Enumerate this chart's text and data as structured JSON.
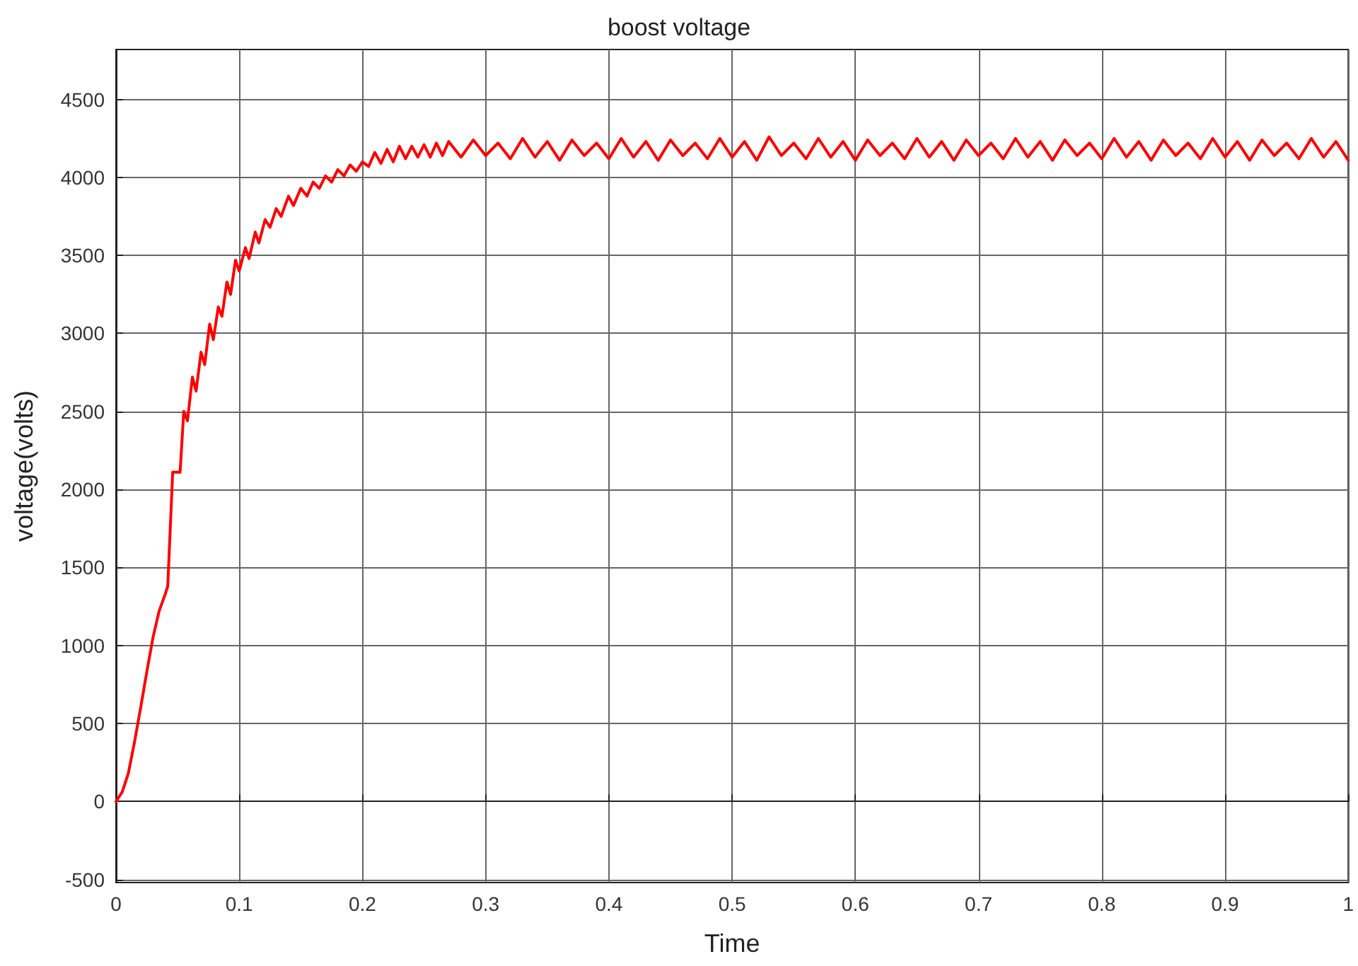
{
  "chart_data": {
    "type": "line",
    "title": "boost voltage",
    "xlabel": "Time",
    "ylabel": "voltage(volts)",
    "xlim": [
      0,
      1
    ],
    "xticks": [
      0,
      0.1,
      0.2,
      0.3,
      0.4,
      0.5,
      0.6,
      0.7,
      0.8,
      0.9,
      1
    ],
    "ylim": [
      -520,
      4820
    ],
    "yticks": [
      -500,
      0,
      500,
      1000,
      1500,
      2000,
      2500,
      3000,
      3500,
      4000,
      4500
    ],
    "grid": true,
    "marker": "none",
    "line_style": "solid",
    "series": [
      {
        "color": "#ff0000",
        "x": [
          0,
          0.005,
          0.01,
          0.015,
          0.02,
          0.025,
          0.03,
          0.035,
          0.04,
          0.042,
          0.046,
          0.052,
          0.055,
          0.058,
          0.062,
          0.065,
          0.069,
          0.072,
          0.076,
          0.079,
          0.083,
          0.086,
          0.09,
          0.093,
          0.097,
          0.1,
          0.105,
          0.108,
          0.113,
          0.116,
          0.121,
          0.125,
          0.13,
          0.134,
          0.14,
          0.144,
          0.15,
          0.155,
          0.16,
          0.165,
          0.17,
          0.175,
          0.18,
          0.185,
          0.19,
          0.195,
          0.2,
          0.205,
          0.21,
          0.215,
          0.22,
          0.225,
          0.23,
          0.235,
          0.24,
          0.245,
          0.25,
          0.255,
          0.26,
          0.265,
          0.27,
          0.28,
          0.29,
          0.3,
          0.31,
          0.32,
          0.33,
          0.34,
          0.35,
          0.36,
          0.37,
          0.38,
          0.39,
          0.4,
          0.41,
          0.42,
          0.43,
          0.44,
          0.45,
          0.46,
          0.47,
          0.48,
          0.49,
          0.5,
          0.51,
          0.52,
          0.53,
          0.54,
          0.55,
          0.56,
          0.57,
          0.58,
          0.59,
          0.6,
          0.61,
          0.62,
          0.63,
          0.64,
          0.65,
          0.66,
          0.67,
          0.68,
          0.69,
          0.7,
          0.71,
          0.72,
          0.73,
          0.74,
          0.75,
          0.76,
          0.77,
          0.78,
          0.79,
          0.8,
          0.81,
          0.82,
          0.83,
          0.84,
          0.85,
          0.86,
          0.87,
          0.88,
          0.89,
          0.9,
          0.91,
          0.92,
          0.93,
          0.94,
          0.95,
          0.96,
          0.97,
          0.98,
          0.99,
          1
        ],
        "values": [
          0,
          60,
          180,
          380,
          600,
          830,
          1050,
          1220,
          1330,
          1380,
          2110,
          2110,
          2500,
          2440,
          2720,
          2630,
          2880,
          2800,
          3060,
          2960,
          3170,
          3110,
          3330,
          3250,
          3470,
          3400,
          3550,
          3480,
          3650,
          3580,
          3730,
          3680,
          3800,
          3750,
          3880,
          3820,
          3930,
          3880,
          3970,
          3930,
          4010,
          3970,
          4050,
          4010,
          4080,
          4040,
          4100,
          4070,
          4160,
          4090,
          4180,
          4100,
          4200,
          4120,
          4200,
          4130,
          4210,
          4130,
          4220,
          4140,
          4230,
          4130,
          4240,
          4140,
          4220,
          4120,
          4250,
          4130,
          4230,
          4110,
          4240,
          4140,
          4220,
          4120,
          4250,
          4130,
          4230,
          4110,
          4240,
          4140,
          4220,
          4120,
          4250,
          4130,
          4230,
          4110,
          4260,
          4140,
          4220,
          4120,
          4250,
          4130,
          4230,
          4110,
          4240,
          4140,
          4220,
          4120,
          4250,
          4130,
          4230,
          4110,
          4240,
          4140,
          4220,
          4120,
          4250,
          4130,
          4230,
          4110,
          4240,
          4140,
          4220,
          4120,
          4250,
          4130,
          4230,
          4110,
          4240,
          4140,
          4220,
          4120,
          4250,
          4130,
          4230,
          4110,
          4240,
          4140,
          4220,
          4120,
          4250,
          4130,
          4230,
          4110
        ]
      }
    ]
  }
}
